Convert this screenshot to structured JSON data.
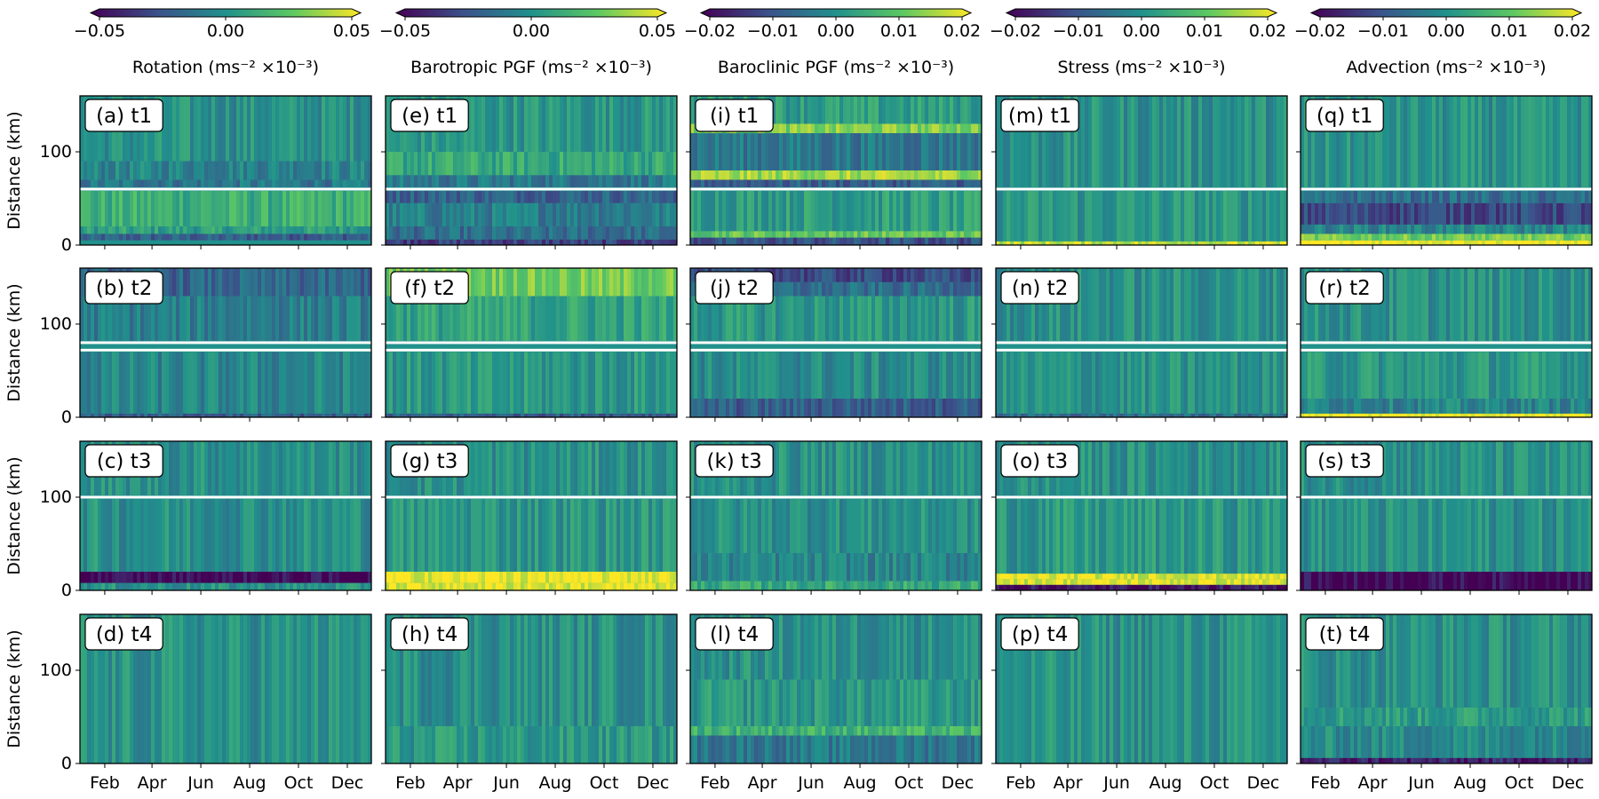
{
  "figure": {
    "type": "heatmap",
    "description_free": true
  },
  "chart_data": {
    "type": "heatmap",
    "layout": "4 rows x 5 columns of heatmap panels; shared x (month) axis per column, shared y (distance) axis per row",
    "ylabel": "Distance (km)",
    "ylim": [
      0,
      160
    ],
    "yticks": [
      0,
      100
    ],
    "xlabel": "",
    "xticks": [
      "Feb",
      "Apr",
      "Jun",
      "Aug",
      "Oct",
      "Dec"
    ],
    "xlim_days": [
      1,
      365
    ],
    "xtick_days": [
      32,
      91,
      152,
      213,
      274,
      335
    ],
    "colormap": "viridis",
    "colormap_stops": [
      "#440154",
      "#3b528b",
      "#21918c",
      "#5ec962",
      "#fde725"
    ],
    "columns": [
      {
        "key": "rotation",
        "colorbar_label": "Rotation (ms⁻² ×10⁻³)",
        "clim": [
          -0.05,
          0.05
        ],
        "colorbar_ticks": [
          "−0.05",
          "0.00",
          "0.05"
        ],
        "colorbar_tick_values": [
          -0.05,
          0.0,
          0.05
        ]
      },
      {
        "key": "barotropic",
        "colorbar_label": "Barotropic PGF (ms⁻² ×10⁻³)",
        "clim": [
          -0.05,
          0.05
        ],
        "colorbar_ticks": [
          "−0.05",
          "0.00",
          "0.05"
        ],
        "colorbar_tick_values": [
          -0.05,
          0.0,
          0.05
        ]
      },
      {
        "key": "baroclinic",
        "colorbar_label": "Baroclinic PGF (ms⁻² ×10⁻³)",
        "clim": [
          -0.02,
          0.02
        ],
        "colorbar_ticks": [
          "−0.02",
          "−0.01",
          "0.00",
          "0.01",
          "0.02"
        ],
        "colorbar_tick_values": [
          -0.02,
          -0.01,
          0.0,
          0.01,
          0.02
        ]
      },
      {
        "key": "stress",
        "colorbar_label": "Stress (ms⁻² ×10⁻³)",
        "clim": [
          -0.02,
          0.02
        ],
        "colorbar_ticks": [
          "−0.02",
          "−0.01",
          "0.00",
          "0.01",
          "0.02"
        ],
        "colorbar_tick_values": [
          -0.02,
          -0.01,
          0.0,
          0.01,
          0.02
        ]
      },
      {
        "key": "advection",
        "colorbar_label": "Advection (ms⁻² ×10⁻³)",
        "clim": [
          -0.02,
          0.02
        ],
        "colorbar_ticks": [
          "−0.02",
          "−0.01",
          "0.00",
          "0.01",
          "0.02"
        ],
        "colorbar_tick_values": [
          -0.02,
          -0.01,
          0.0,
          0.01,
          0.02
        ]
      }
    ],
    "rows": [
      {
        "key": "t1",
        "reference_lines_km": [
          60
        ]
      },
      {
        "key": "t2",
        "reference_lines_km": [
          72,
          80
        ]
      },
      {
        "key": "t3",
        "reference_lines_km": [
          100
        ]
      },
      {
        "key": "t4",
        "reference_lines_km": []
      }
    ],
    "panel_labels": [
      [
        "(a) t1",
        "(e) t1",
        "(i) t1",
        "(m) t1",
        "(q) t1"
      ],
      [
        "(b) t2",
        "(f) t2",
        "(j) t2",
        "(n) t2",
        "(r) t2"
      ],
      [
        "(c) t3",
        "(g) t3",
        "(k) t3",
        "(o) t3",
        "(s) t3"
      ],
      [
        "(d) t4",
        "(h) t4",
        "(l) t4",
        "(p) t4",
        "(t) t4"
      ]
    ],
    "bands": [
      [
        [
          {
            "y": [
              5,
              12
            ],
            "v": -0.4
          },
          {
            "y": [
              12,
              20
            ],
            "v": 0.1
          },
          {
            "y": [
              20,
              58
            ],
            "v": 0.25
          },
          {
            "y": [
              62,
              70
            ],
            "v": -0.2
          },
          {
            "y": [
              70,
              90
            ],
            "v": -0.1
          },
          {
            "y": [
              90,
              160
            ],
            "v": 0.0
          }
        ],
        [
          {
            "y": [
              0,
              6
            ],
            "v": -0.6
          },
          {
            "y": [
              6,
              20
            ],
            "v": -0.3
          },
          {
            "y": [
              20,
              45
            ],
            "v": -0.15
          },
          {
            "y": [
              45,
              58
            ],
            "v": -0.35
          },
          {
            "y": [
              62,
              75
            ],
            "v": -0.2
          },
          {
            "y": [
              75,
              100
            ],
            "v": 0.2
          },
          {
            "y": [
              100,
              160
            ],
            "v": 0.05
          }
        ],
        [
          {
            "y": [
              0,
              8
            ],
            "v": -0.5
          },
          {
            "y": [
              8,
              15
            ],
            "v": 0.5
          },
          {
            "y": [
              15,
              58
            ],
            "v": 0.1
          },
          {
            "y": [
              62,
              70
            ],
            "v": -0.4
          },
          {
            "y": [
              70,
              80
            ],
            "v": 0.7
          },
          {
            "y": [
              80,
              120
            ],
            "v": -0.2
          },
          {
            "y": [
              120,
              130
            ],
            "v": 0.6
          },
          {
            "y": [
              130,
              160
            ],
            "v": 0.1
          }
        ],
        [
          {
            "y": [
              0,
              4
            ],
            "v": 0.8
          },
          {
            "y": [
              4,
              58
            ],
            "v": 0.05
          },
          {
            "y": [
              62,
              160
            ],
            "v": 0.0
          }
        ],
        [
          {
            "y": [
              0,
              5
            ],
            "v": 1.0
          },
          {
            "y": [
              5,
              12
            ],
            "v": 0.55
          },
          {
            "y": [
              12,
              22
            ],
            "v": -0.1
          },
          {
            "y": [
              22,
              45
            ],
            "v": -0.55
          },
          {
            "y": [
              45,
              58
            ],
            "v": -0.3
          },
          {
            "y": [
              62,
              160
            ],
            "v": 0.0
          }
        ]
      ],
      [
        [
          {
            "y": [
              0,
              4
            ],
            "v": -0.4
          },
          {
            "y": [
              4,
              70
            ],
            "v": -0.1
          },
          {
            "y": [
              82,
              130
            ],
            "v": -0.15
          },
          {
            "y": [
              130,
              160
            ],
            "v": -0.35
          }
        ],
        [
          {
            "y": [
              0,
              4
            ],
            "v": -0.4
          },
          {
            "y": [
              4,
              70
            ],
            "v": 0.05
          },
          {
            "y": [
              82,
              130
            ],
            "v": 0.15
          },
          {
            "y": [
              130,
              160
            ],
            "v": 0.55
          }
        ],
        [
          {
            "y": [
              0,
              20
            ],
            "v": -0.4
          },
          {
            "y": [
              20,
              70
            ],
            "v": -0.05
          },
          {
            "y": [
              82,
              130
            ],
            "v": 0.05
          },
          {
            "y": [
              130,
              145
            ],
            "v": -0.3
          },
          {
            "y": [
              145,
              160
            ],
            "v": -0.55
          }
        ],
        [
          {
            "y": [
              0,
              4
            ],
            "v": -0.3
          },
          {
            "y": [
              4,
              70
            ],
            "v": 0.0
          },
          {
            "y": [
              82,
              160
            ],
            "v": 0.0
          }
        ],
        [
          {
            "y": [
              0,
              4
            ],
            "v": 1.0
          },
          {
            "y": [
              4,
              20
            ],
            "v": -0.1
          },
          {
            "y": [
              20,
              70
            ],
            "v": 0.05
          },
          {
            "y": [
              82,
              160
            ],
            "v": 0.0
          }
        ]
      ],
      [
        [
          {
            "y": [
              0,
              8
            ],
            "v": 0.0
          },
          {
            "y": [
              8,
              20
            ],
            "v": -0.95
          },
          {
            "y": [
              20,
              98
            ],
            "v": 0.0
          },
          {
            "y": [
              102,
              160
            ],
            "v": 0.0
          }
        ],
        [
          {
            "y": [
              0,
              8
            ],
            "v": 0.9
          },
          {
            "y": [
              8,
              20
            ],
            "v": 0.95
          },
          {
            "y": [
              20,
              98
            ],
            "v": 0.05
          },
          {
            "y": [
              102,
              160
            ],
            "v": 0.0
          }
        ],
        [
          {
            "y": [
              0,
              10
            ],
            "v": 0.2
          },
          {
            "y": [
              10,
              40
            ],
            "v": -0.1
          },
          {
            "y": [
              40,
              98
            ],
            "v": 0.0
          },
          {
            "y": [
              102,
              160
            ],
            "v": 0.0
          }
        ],
        [
          {
            "y": [
              0,
              6
            ],
            "v": -0.9
          },
          {
            "y": [
              6,
              12
            ],
            "v": 0.9
          },
          {
            "y": [
              12,
              18
            ],
            "v": 0.9
          },
          {
            "y": [
              18,
              98
            ],
            "v": 0.05
          },
          {
            "y": [
              102,
              160
            ],
            "v": 0.0
          }
        ],
        [
          {
            "y": [
              0,
              20
            ],
            "v": -0.95
          },
          {
            "y": [
              20,
              98
            ],
            "v": 0.0
          },
          {
            "y": [
              102,
              160
            ],
            "v": 0.0
          }
        ]
      ],
      [
        [
          {
            "y": [
              0,
              160
            ],
            "v": 0.0
          }
        ],
        [
          {
            "y": [
              0,
              40
            ],
            "v": 0.05
          },
          {
            "y": [
              40,
              160
            ],
            "v": 0.0
          }
        ],
        [
          {
            "y": [
              0,
              30
            ],
            "v": -0.2
          },
          {
            "y": [
              30,
              40
            ],
            "v": 0.3
          },
          {
            "y": [
              40,
              90
            ],
            "v": 0.05
          },
          {
            "y": [
              90,
              160
            ],
            "v": 0.0
          }
        ],
        [
          {
            "y": [
              0,
              160
            ],
            "v": 0.0
          }
        ],
        [
          {
            "y": [
              0,
              6
            ],
            "v": -0.8
          },
          {
            "y": [
              6,
              40
            ],
            "v": -0.05
          },
          {
            "y": [
              40,
              60
            ],
            "v": 0.1
          },
          {
            "y": [
              60,
              160
            ],
            "v": 0.0
          }
        ]
      ]
    ]
  }
}
